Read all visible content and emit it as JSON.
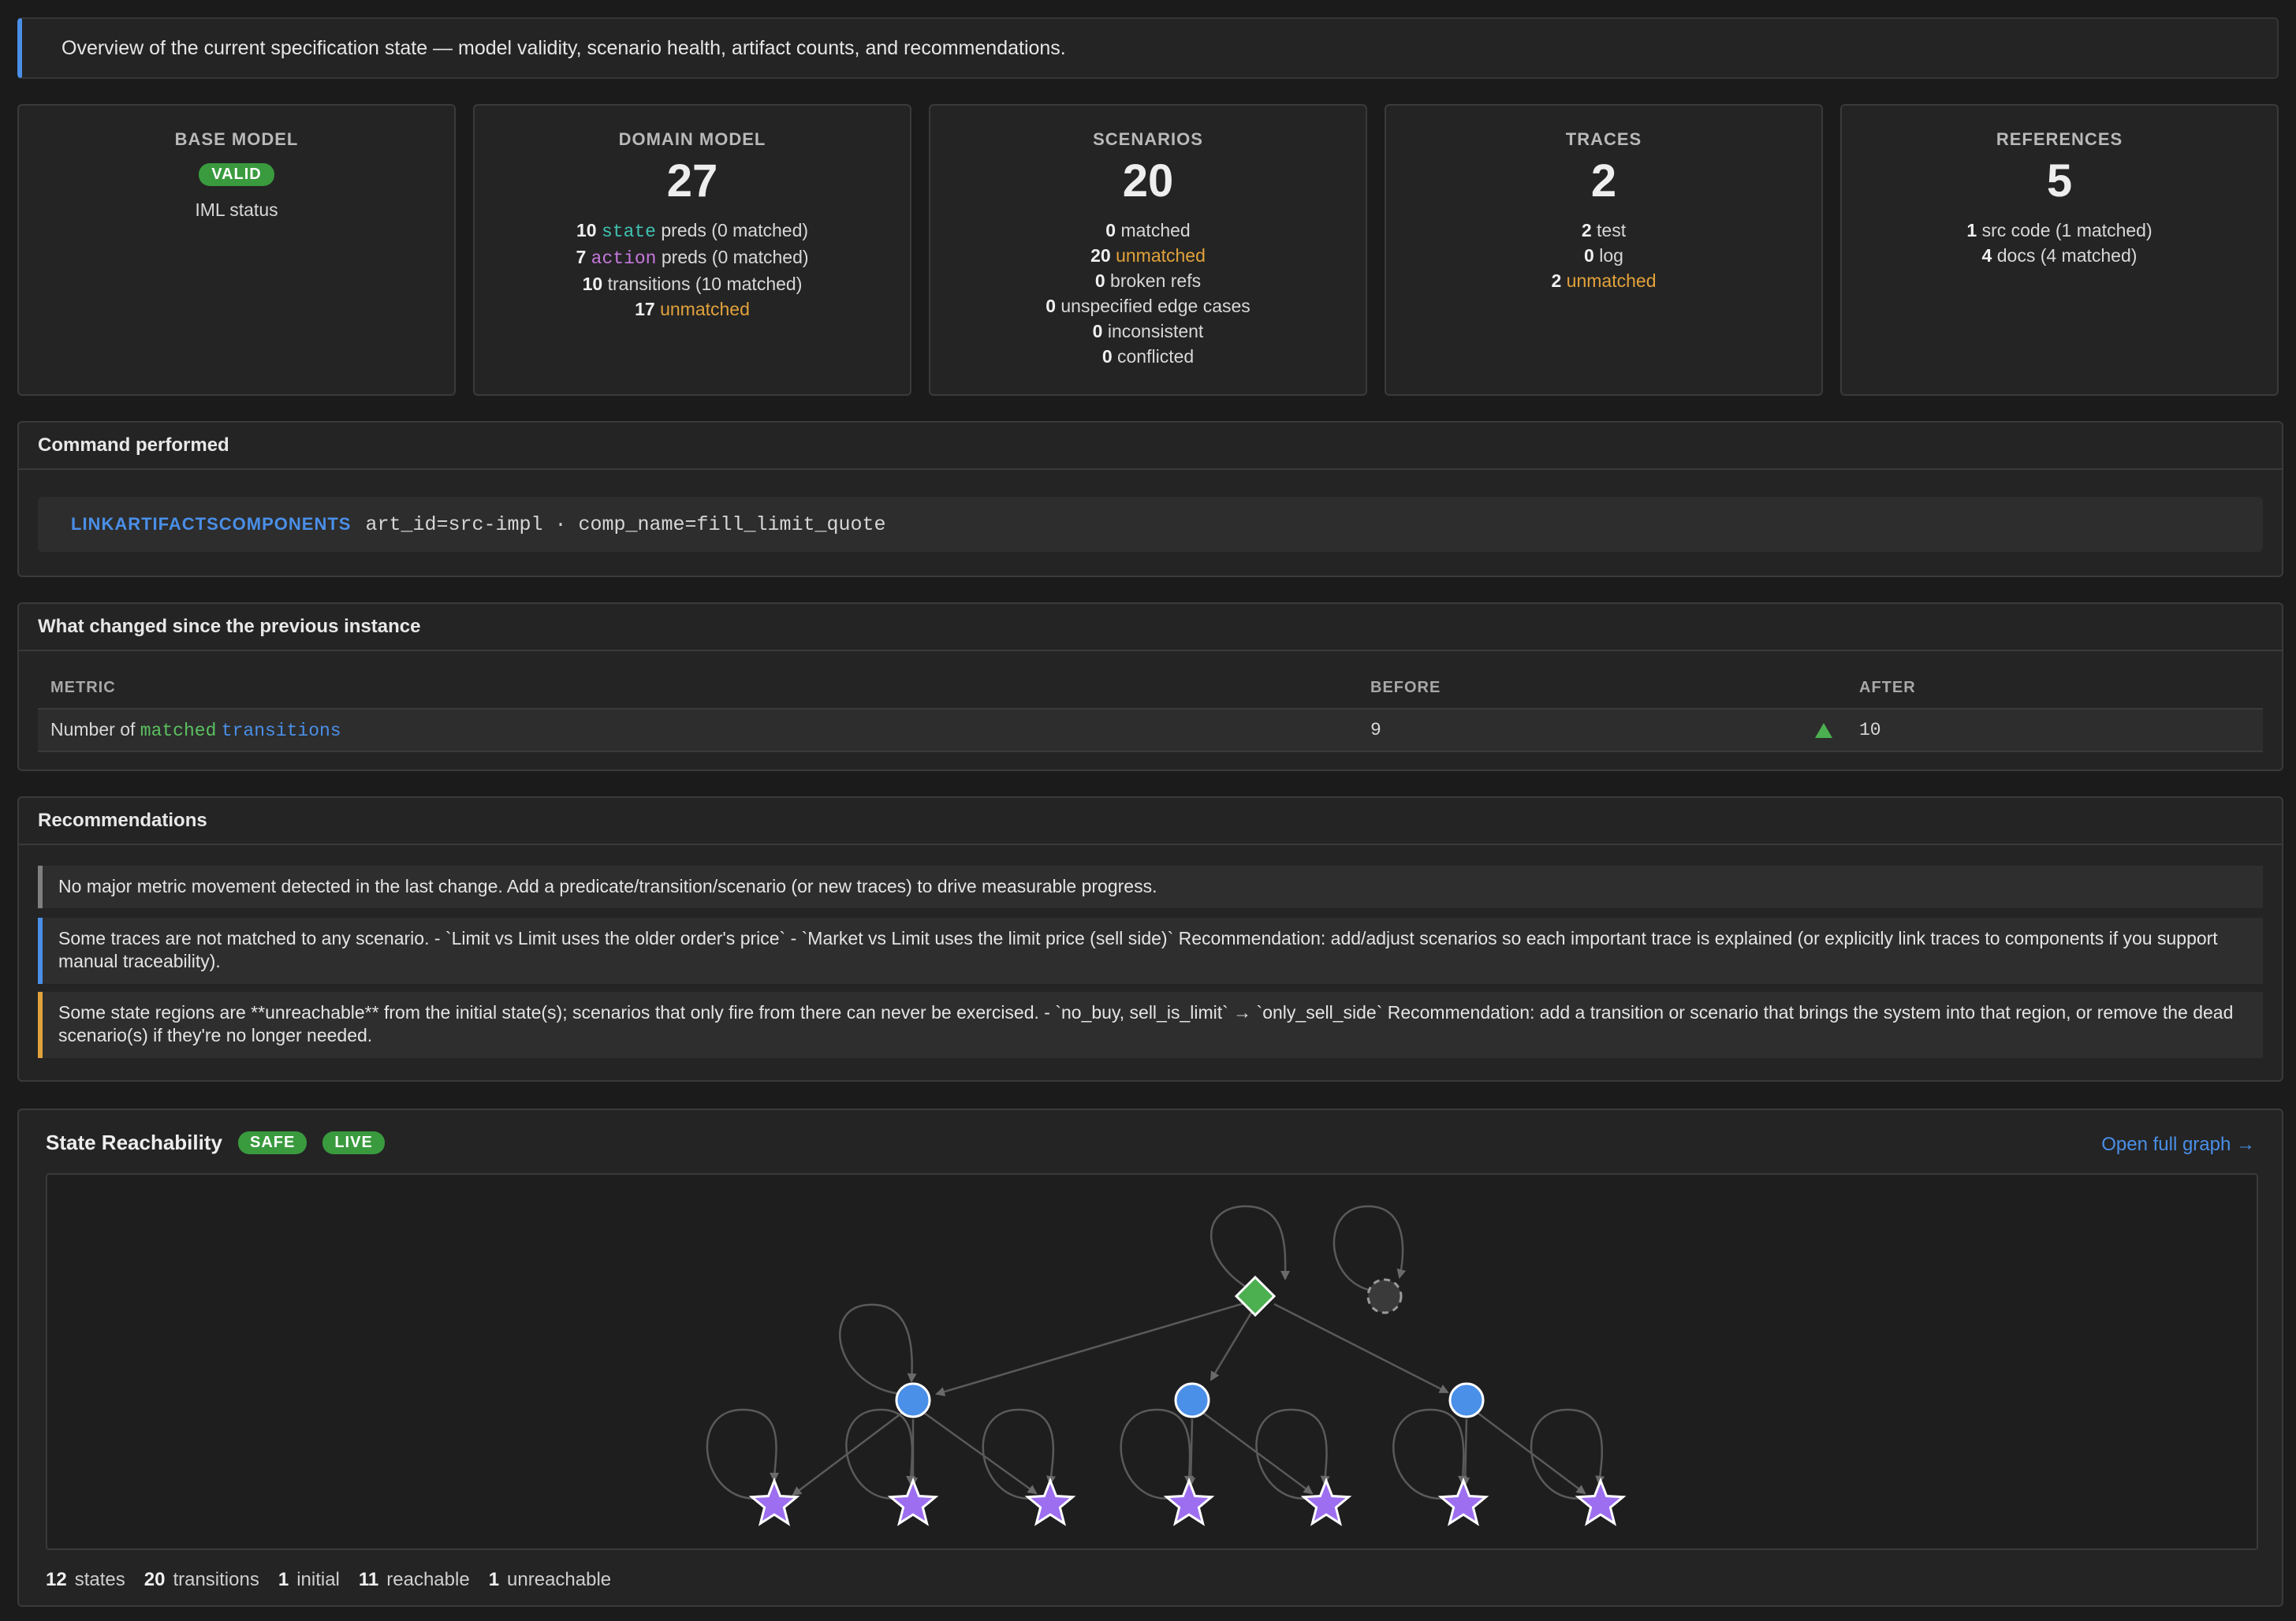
{
  "banner": "Overview of the current specification state — model validity, scenario health, artifact counts, and recommendations.",
  "cards": {
    "base_model": {
      "title": "BASE MODEL",
      "badge": "VALID",
      "line": "IML status"
    },
    "domain_model": {
      "title": "DOMAIN MODEL",
      "count": "27",
      "state_count": "10",
      "state_tok": "state",
      "state_rest": " preds (0 matched)",
      "action_count": "7",
      "action_tok": "action",
      "action_rest": " preds (0 matched)",
      "trans_count": "10",
      "trans_rest": " transitions (10 matched)",
      "unmatched_count": "17",
      "unmatched_label": " unmatched"
    },
    "scenarios": {
      "title": "SCENARIOS",
      "count": "20",
      "lines": [
        {
          "n": "0",
          "t": " matched",
          "warn": false
        },
        {
          "n": "20",
          "t": " unmatched",
          "warn": true
        },
        {
          "n": "0",
          "t": " broken refs",
          "warn": false
        },
        {
          "n": "0",
          "t": " unspecified edge cases",
          "warn": false
        },
        {
          "n": "0",
          "t": " inconsistent",
          "warn": false
        },
        {
          "n": "0",
          "t": " conflicted",
          "warn": false
        }
      ]
    },
    "traces": {
      "title": "TRACES",
      "count": "2",
      "lines": [
        {
          "n": "2",
          "t": " test",
          "warn": false
        },
        {
          "n": "0",
          "t": " log",
          "warn": false
        },
        {
          "n": "2",
          "t": " unmatched",
          "warn": true
        }
      ]
    },
    "references": {
      "title": "REFERENCES",
      "count": "5",
      "lines": [
        {
          "n": "1",
          "t": " src code (1 matched)",
          "warn": false
        },
        {
          "n": "4",
          "t": " docs (4 matched)",
          "warn": false
        }
      ]
    }
  },
  "command": {
    "heading": "Command performed",
    "name": "LINKARTIFACTSCOMPONENTS",
    "args": "art_id=src-impl · comp_name=fill_limit_quote"
  },
  "changes": {
    "heading": "What changed since the previous instance",
    "columns": {
      "metric": "METRIC",
      "before": "BEFORE",
      "after": "AFTER"
    },
    "row": {
      "prefix": "Number of ",
      "tok_matched": "matched",
      "tok_transitions": "transitions",
      "before": "9",
      "after": "10"
    }
  },
  "recommendations": {
    "heading": "Recommendations",
    "items": [
      {
        "text": "No major metric movement detected in the last change. Add a predicate/transition/scenario (or new traces) to drive measurable progress.",
        "color": "#808080"
      },
      {
        "text": "Some traces are not matched to any scenario. - `Limit vs Limit uses the older order's price` - `Market vs Limit uses the limit price (sell side)` Recommendation: add/adjust scenarios so each important trace is explained (or explicitly link traces to components if you support manual traceability).",
        "color": "#4a8fe8"
      },
      {
        "text": "Some state regions are **unreachable** from the initial state(s); scenarios that only fire from there can never be exercised. - `no_buy, sell_is_limit` → `only_sell_side` Recommendation: add a transition or scenario that brings the system into that region, or remove the dead scenario(s) if they're no longer needed.",
        "color": "#e2a23b"
      }
    ]
  },
  "reachability": {
    "title": "State Reachability",
    "badges": [
      "SAFE",
      "LIVE"
    ],
    "open_link": "Open full graph →",
    "stats": [
      {
        "n": "12",
        "label": "states"
      },
      {
        "n": "20",
        "label": "transitions"
      },
      {
        "n": "1",
        "label": "initial"
      },
      {
        "n": "11",
        "label": "reachable"
      },
      {
        "n": "1",
        "label": "unreachable"
      }
    ],
    "colors": {
      "initial": "#4caf50",
      "intermediate": "#4a8fe8",
      "terminal": "#9d6ef0",
      "unreachable": "#3a3a3a"
    }
  }
}
